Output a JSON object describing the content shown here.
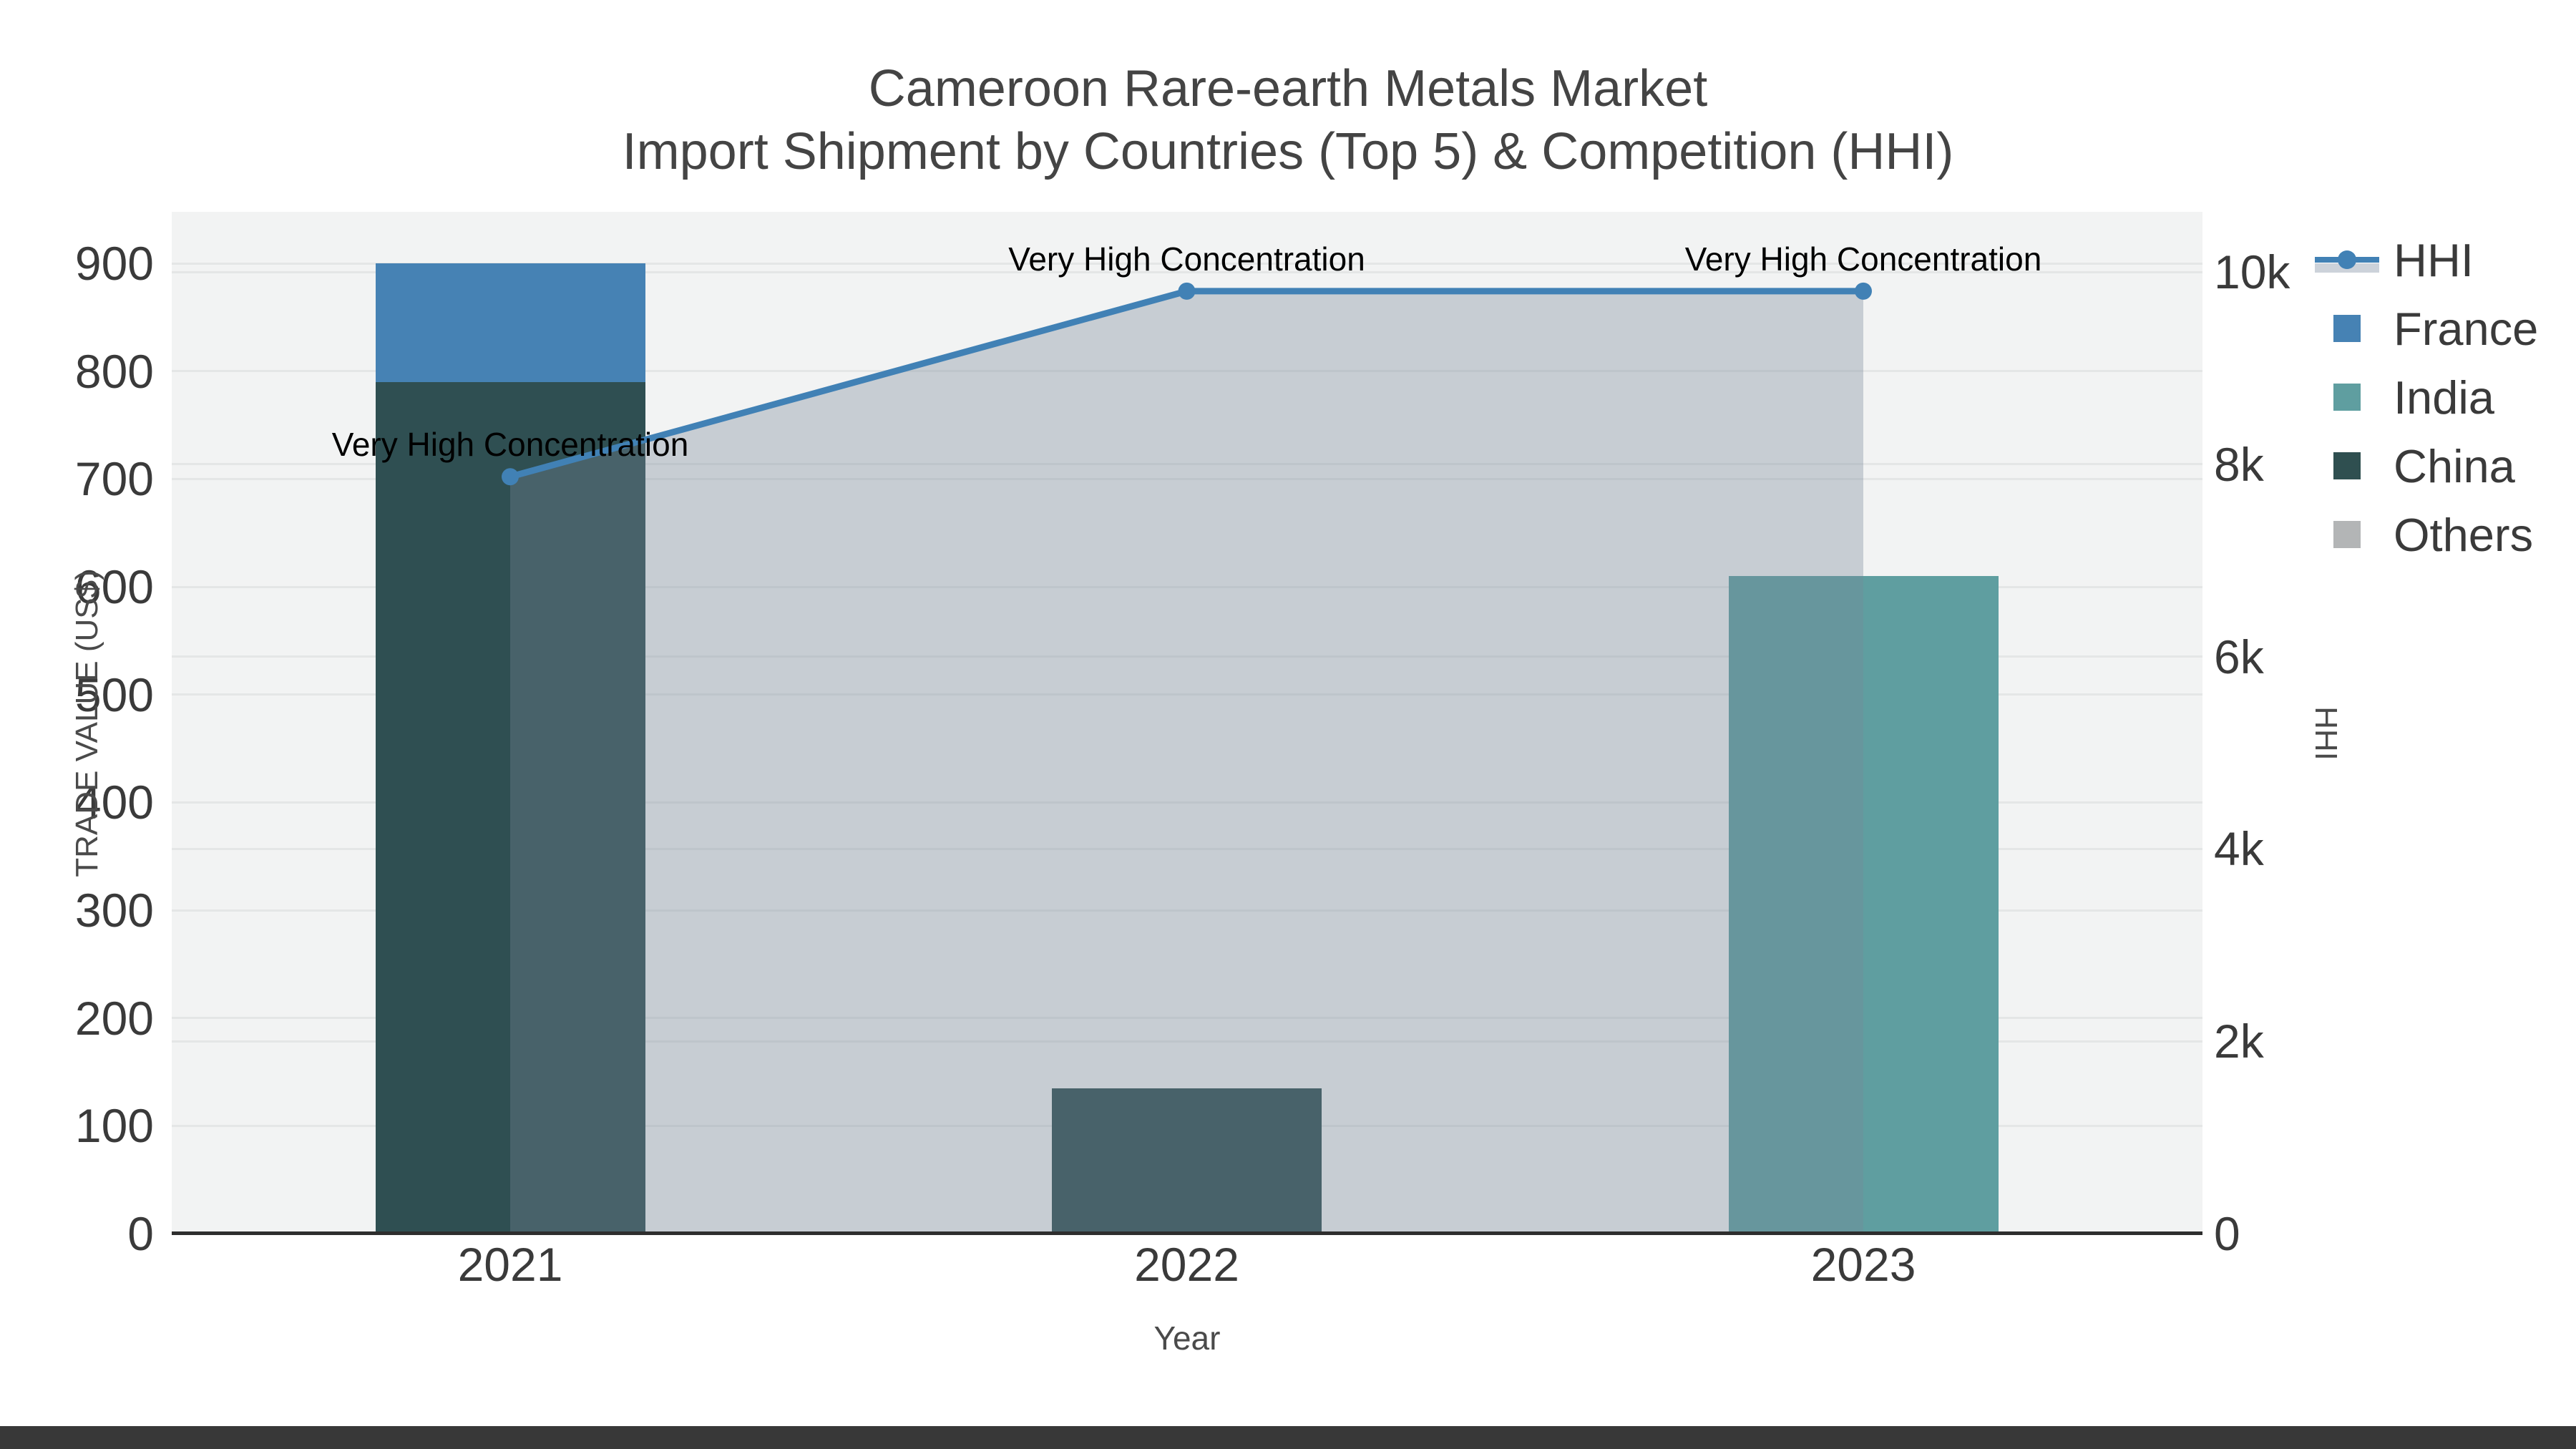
{
  "title": {
    "line1": "Cameroon Rare-earth Metals Market",
    "line2": "Import Shipment by Countries (Top 5) & Competition (HHI)"
  },
  "axes": {
    "x": {
      "title": "Year",
      "ticks": [
        "2021",
        "2022",
        "2023"
      ]
    },
    "y_left": {
      "title": "TRADE VALUE (US$)",
      "ticks": [
        "0",
        "100",
        "200",
        "300",
        "400",
        "500",
        "600",
        "700",
        "800",
        "900"
      ]
    },
    "y_right": {
      "title": "HHI",
      "ticks": [
        "0",
        "2k",
        "4k",
        "6k",
        "8k",
        "10k"
      ]
    }
  },
  "legend": {
    "items": [
      {
        "label": "HHI",
        "type": "line",
        "color": "#4181b5"
      },
      {
        "label": "France",
        "type": "square",
        "color": "#4682b4"
      },
      {
        "label": "India",
        "type": "square",
        "color": "#5f9ea0"
      },
      {
        "label": "China",
        "type": "square",
        "color": "#2f4f50"
      },
      {
        "label": "Others",
        "type": "square",
        "color": "#b3b5b6"
      }
    ]
  },
  "annotations": [
    {
      "text": "Very High Concentration",
      "year": "2021"
    },
    {
      "text": "Very High Concentration",
      "year": "2022"
    },
    {
      "text": "Very High Concentration",
      "year": "2023"
    }
  ],
  "chart_data": {
    "type": "bar+line",
    "categories": [
      "2021",
      "2022",
      "2023"
    ],
    "bar_series": [
      {
        "name": "China",
        "color": "#2f4f52",
        "values": [
          790,
          135,
          0
        ]
      },
      {
        "name": "India",
        "color": "#5f9ea0",
        "values": [
          0,
          0,
          610
        ]
      },
      {
        "name": "France",
        "color": "#4682b4",
        "values": [
          110,
          0,
          0
        ]
      },
      {
        "name": "Others",
        "color": "#b3b5b6",
        "values": [
          0,
          0,
          0
        ]
      }
    ],
    "line_series": {
      "name": "HHI",
      "axis": "right",
      "color": "#4181b5",
      "fill_color": "rgba(119,136,153,0.35)",
      "values": [
        7870,
        9800,
        9800
      ]
    },
    "title": "Cameroon Rare-earth Metals Market — Import Shipment by Countries (Top 5) & Competition (HHI)",
    "xlabel": "Year",
    "ylabel_left": "TRADE VALUE (US$)",
    "ylabel_right": "HHI",
    "ylim_left": [
      0,
      948
    ],
    "ylim_right": [
      0,
      10630
    ],
    "grid": true,
    "legend_position": "right",
    "plot_bg": "#f2f3f3"
  }
}
